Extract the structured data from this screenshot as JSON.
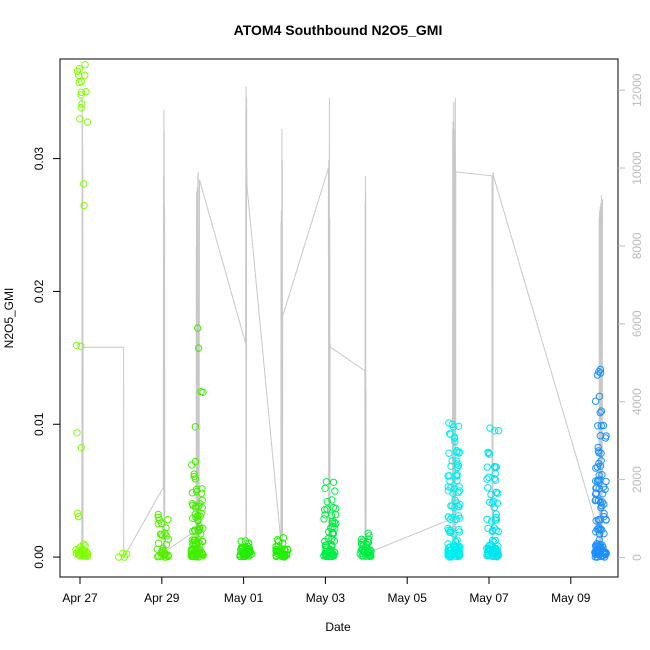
{
  "chart_data": {
    "type": "scatter",
    "title": "ATOM4 Southbound N2O5_GMI",
    "xlabel": "Date",
    "ylabel": "N2O5_GMI",
    "x_ticks": [
      "Apr 27",
      "Apr 29",
      "May 01",
      "May 03",
      "May 05",
      "May 07",
      "May 09"
    ],
    "y_ticks": [
      "0.00",
      "0.01",
      "0.02",
      "0.03"
    ],
    "y2_ticks": [
      "0",
      "2000",
      "4000",
      "6000",
      "8000",
      "10000",
      "12000"
    ],
    "xlim": [
      "2018-04-26T12:00",
      "2018-05-10T00:00"
    ],
    "ylim": [
      -0.0015,
      0.0375
    ],
    "y2lim": [
      -500,
      12800
    ],
    "grid": false,
    "colors": {
      "axis": "#000000",
      "altitude_trace": "#c8c8c8",
      "right_axis": "#bbbbbb"
    },
    "altitude_trace": {
      "name": "altitude",
      "axis": "right",
      "x": [
        "2018-04-27T00:40",
        "2018-04-27T00:55",
        "2018-04-27T01:00",
        "2018-04-27T01:05",
        "2018-04-27T01:10",
        "2018-04-27T01:15",
        "2018-04-27T01:20",
        "2018-04-27T01:25",
        "2018-04-27T01:30",
        "2018-04-27T01:35",
        "2018-04-27T01:40",
        "2018-04-27T02:00",
        "2018-04-28T00:55",
        "2018-04-28T01:00",
        "2018-04-29T00:00",
        "2018-04-29T00:10",
        "2018-04-29T00:15",
        "2018-04-29T00:20",
        "2018-04-29T00:25",
        "2018-04-29T00:30",
        "2018-04-29T00:40",
        "2018-04-29T00:45",
        "2018-04-29T00:50",
        "2018-04-29T19:00",
        "2018-04-29T19:10",
        "2018-04-29T19:15",
        "2018-04-29T19:20",
        "2018-04-29T19:25",
        "2018-04-29T19:30",
        "2018-04-29T19:40",
        "2018-04-29T19:45",
        "2018-04-29T19:50",
        "2018-04-29T20:05",
        "2018-04-29T20:10",
        "2018-04-29T20:15",
        "2018-04-29T20:35",
        "2018-04-29T20:40",
        "2018-04-29T20:45",
        "2018-04-29T21:00",
        "2018-04-30T23:45",
        "2018-04-30T23:55",
        "2018-05-01T00:00",
        "2018-05-01T00:05",
        "2018-05-01T00:15",
        "2018-05-01T00:20",
        "2018-05-01T00:25",
        "2018-05-01T00:40",
        "2018-05-01T20:15",
        "2018-05-01T20:20",
        "2018-05-01T20:25",
        "2018-05-01T20:30",
        "2018-05-01T20:35",
        "2018-05-01T20:40",
        "2018-05-01T20:45",
        "2018-05-01T20:50",
        "2018-05-01T21:00",
        "2018-05-01T21:05",
        "2018-05-01T21:10",
        "2018-05-01T21:20",
        "2018-05-02T23:50",
        "2018-05-03T00:00",
        "2018-05-03T00:05",
        "2018-05-03T00:10",
        "2018-05-03T00:15",
        "2018-05-03T00:20",
        "2018-05-03T00:25",
        "2018-05-03T00:30",
        "2018-05-03T00:40",
        "2018-05-03T00:45",
        "2018-05-03T00:50",
        "2018-05-03T01:00",
        "2018-05-03T21:00",
        "2018-05-03T21:05",
        "2018-05-03T21:10",
        "2018-05-03T21:15",
        "2018-05-03T21:20",
        "2018-05-03T21:25",
        "2018-05-03T21:30",
        "2018-05-03T21:35",
        "2018-05-03T21:40",
        "2018-05-03T21:45",
        "2018-05-05T23:55",
        "2018-05-06T00:00",
        "2018-05-06T00:05",
        "2018-05-06T00:10",
        "2018-05-06T00:15",
        "2018-05-06T00:20",
        "2018-05-06T00:25",
        "2018-05-06T00:30",
        "2018-05-06T00:35",
        "2018-05-06T00:40",
        "2018-05-06T00:45",
        "2018-05-06T00:50",
        "2018-05-06T01:00",
        "2018-05-06T01:05",
        "2018-05-06T01:10",
        "2018-05-06T01:20",
        "2018-05-06T01:25",
        "2018-05-06T01:30",
        "2018-05-06T01:40",
        "2018-05-06T01:45",
        "2018-05-06T01:50",
        "2018-05-06T22:50",
        "2018-05-06T22:55",
        "2018-05-06T23:00",
        "2018-05-06T23:05",
        "2018-05-06T23:10",
        "2018-05-06T23:20",
        "2018-05-06T23:25",
        "2018-05-06T23:30",
        "2018-05-06T23:40",
        "2018-05-09T13:00",
        "2018-05-09T13:05",
        "2018-05-09T13:10",
        "2018-05-09T13:15",
        "2018-05-09T13:20",
        "2018-05-09T13:25",
        "2018-05-09T13:30",
        "2018-05-09T13:35",
        "2018-05-09T13:40",
        "2018-05-09T13:45",
        "2018-05-09T13:50",
        "2018-05-09T14:00",
        "2018-05-09T14:10",
        "2018-05-09T14:20",
        "2018-05-09T14:30",
        "2018-05-09T14:40",
        "2018-05-09T14:50",
        "2018-05-09T15:00"
      ],
      "y": [
        0,
        11800,
        200,
        11300,
        300,
        10500,
        400,
        5400,
        5400,
        5400,
        5400,
        5400,
        5400,
        0,
        1800,
        9800,
        100,
        11500,
        200,
        11000,
        100,
        9000,
        150,
        700,
        8000,
        100,
        9400,
        150,
        9100,
        100,
        9500,
        200,
        9800,
        100,
        9900,
        200,
        7000,
        100,
        9700,
        5500,
        11500,
        200,
        12100,
        300,
        11800,
        10200,
        9500,
        400,
        8600,
        100,
        8900,
        200,
        8600,
        100,
        11000,
        300,
        10200,
        200,
        6200,
        10000,
        200,
        10200,
        300,
        9800,
        200,
        11800,
        300,
        8700,
        200,
        5500,
        5400,
        4800,
        100,
        9100,
        200,
        9800,
        300,
        9400,
        200,
        4300,
        100,
        1000,
        11000,
        200,
        11200,
        300,
        10500,
        200,
        10300,
        400,
        11700,
        300,
        11000,
        9800,
        9900,
        200,
        9500,
        300,
        11800,
        9800,
        200,
        9900,
        9800,
        400,
        9000,
        200,
        9200,
        300,
        9100,
        9900,
        9800,
        600,
        8700,
        100,
        8900,
        200,
        8900,
        300,
        9000,
        150,
        8600,
        200,
        9100,
        600,
        9300,
        300,
        8800,
        200,
        9200
      ]
    },
    "flights": [
      {
        "date": "2018-04-27",
        "color": "#7FFF00",
        "points": [
          [
            0.0005,
            2
          ],
          [
            0.001,
            3
          ],
          [
            0.0033,
            2
          ],
          [
            0.008,
            1
          ],
          [
            0.0093,
            1
          ],
          [
            0.016,
            2
          ],
          [
            0.0263,
            1
          ],
          [
            0.028,
            1
          ],
          [
            0.033,
            2
          ],
          [
            0.034,
            2
          ],
          [
            0.035,
            3
          ],
          [
            0.036,
            4
          ],
          [
            0.0368,
            3
          ]
        ],
        "baseline": 20,
        "offset_days": 0.03
      },
      {
        "date": "2018-04-28",
        "color": "#7FFF00",
        "points": [
          [
            0.0,
            4
          ]
        ],
        "baseline": 0,
        "offset_days": 1.03
      },
      {
        "date": "2018-04-29",
        "color": "#55EE00",
        "points": [
          [
            0.0008,
            5
          ],
          [
            0.0015,
            4
          ],
          [
            0.002,
            3
          ],
          [
            0.0028,
            4
          ],
          [
            0.003,
            2
          ]
        ],
        "baseline": 15,
        "offset_days": 2.0
      },
      {
        "date": "2018-04-29b",
        "color": "#44EE00",
        "points": [
          [
            0.001,
            12
          ],
          [
            0.002,
            10
          ],
          [
            0.003,
            9
          ],
          [
            0.004,
            8
          ],
          [
            0.005,
            5
          ],
          [
            0.006,
            3
          ],
          [
            0.007,
            2
          ],
          [
            0.01,
            1
          ],
          [
            0.0125,
            2
          ],
          [
            0.0155,
            1
          ],
          [
            0.0172,
            1
          ]
        ],
        "baseline": 35,
        "offset_days": 2.82
      },
      {
        "date": "2018-05-01",
        "color": "#22EE00",
        "points": [
          [
            0.0003,
            6
          ],
          [
            0.0006,
            5
          ],
          [
            0.0009,
            4
          ],
          [
            0.0012,
            3
          ]
        ],
        "baseline": 20,
        "offset_days": 4.0
      },
      {
        "date": "2018-05-01b",
        "color": "#22EE00",
        "points": [
          [
            0.0003,
            6
          ],
          [
            0.0006,
            4
          ],
          [
            0.001,
            3
          ],
          [
            0.0014,
            2
          ]
        ],
        "baseline": 20,
        "offset_days": 4.87
      },
      {
        "date": "2018-05-03",
        "color": "#00EE44",
        "points": [
          [
            0.0005,
            6
          ],
          [
            0.001,
            5
          ],
          [
            0.0015,
            5
          ],
          [
            0.002,
            5
          ],
          [
            0.0025,
            4
          ],
          [
            0.003,
            4
          ],
          [
            0.0035,
            3
          ],
          [
            0.004,
            3
          ],
          [
            0.0052,
            2
          ],
          [
            0.0057,
            2
          ]
        ],
        "baseline": 25,
        "offset_days": 6.03
      },
      {
        "date": "2018-05-03b",
        "color": "#00EE44",
        "points": [
          [
            0.0003,
            5
          ],
          [
            0.0007,
            5
          ],
          [
            0.001,
            4
          ],
          [
            0.0013,
            3
          ],
          [
            0.0016,
            3
          ]
        ],
        "baseline": 20,
        "offset_days": 6.9
      },
      {
        "date": "2018-05-06",
        "color": "#00EEEE",
        "points": [
          [
            0.0005,
            10
          ],
          [
            0.001,
            9
          ],
          [
            0.002,
            8
          ],
          [
            0.003,
            8
          ],
          [
            0.004,
            8
          ],
          [
            0.005,
            8
          ],
          [
            0.006,
            7
          ],
          [
            0.007,
            6
          ],
          [
            0.008,
            5
          ],
          [
            0.009,
            5
          ],
          [
            0.01,
            4
          ]
        ],
        "baseline": 40,
        "offset_days": 9.03
      },
      {
        "date": "2018-05-06b",
        "color": "#00E5EE",
        "points": [
          [
            0.0005,
            8
          ],
          [
            0.001,
            7
          ],
          [
            0.002,
            6
          ],
          [
            0.003,
            6
          ],
          [
            0.004,
            5
          ],
          [
            0.005,
            5
          ],
          [
            0.006,
            5
          ],
          [
            0.007,
            4
          ],
          [
            0.008,
            3
          ],
          [
            0.0095,
            3
          ]
        ],
        "baseline": 30,
        "offset_days": 9.97
      },
      {
        "date": "2018-05-09",
        "color": "#1E90FF",
        "points": [
          [
            0.0005,
            10
          ],
          [
            0.001,
            9
          ],
          [
            0.002,
            9
          ],
          [
            0.003,
            9
          ],
          [
            0.004,
            9
          ],
          [
            0.005,
            8
          ],
          [
            0.006,
            7
          ],
          [
            0.007,
            5
          ],
          [
            0.008,
            4
          ],
          [
            0.009,
            3
          ],
          [
            0.01,
            3
          ],
          [
            0.011,
            2
          ],
          [
            0.012,
            2
          ],
          [
            0.014,
            4
          ]
        ],
        "baseline": 30,
        "offset_days": 12.57
      }
    ]
  }
}
